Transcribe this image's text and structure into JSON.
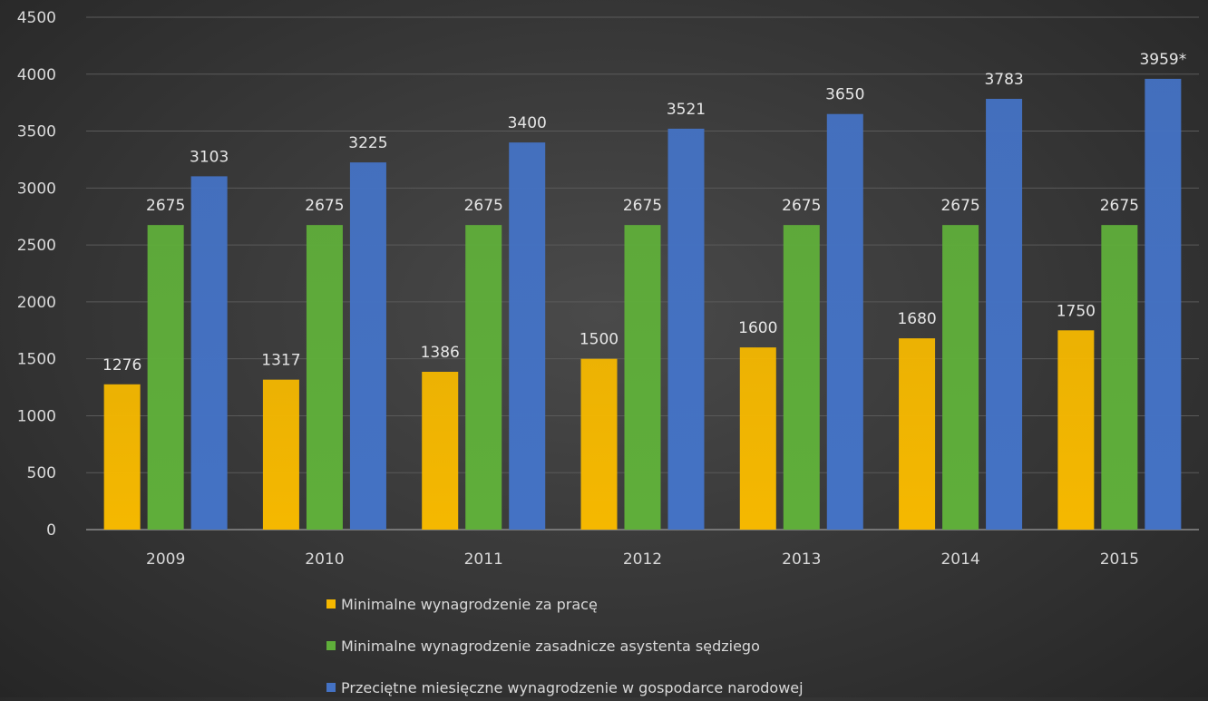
{
  "chart_data": {
    "type": "bar",
    "categories": [
      "2009",
      "2010",
      "2011",
      "2012",
      "2013",
      "2014",
      "2015"
    ],
    "series": [
      {
        "name": "Minimalne wynagrodzenie za pracę",
        "values": [
          1276,
          1317,
          1386,
          1500,
          1600,
          1680,
          1750
        ],
        "labels": [
          "1276",
          "1317",
          "1386",
          "1500",
          "1600",
          "1680",
          "1750"
        ],
        "color": "#f5b800"
      },
      {
        "name": "Minimalne wynagrodzenie zasadnicze asystenta sędziego",
        "values": [
          2675,
          2675,
          2675,
          2675,
          2675,
          2675,
          2675
        ],
        "labels": [
          "2675",
          "2675",
          "2675",
          "2675",
          "2675",
          "2675",
          "2675"
        ],
        "color": "#5fae3a"
      },
      {
        "name": "Przeciętne miesięczne wynagrodzenie w gospodarce narodowej",
        "values": [
          3103,
          3225,
          3400,
          3521,
          3650,
          3783,
          3959
        ],
        "labels": [
          "3103",
          "3225",
          "3400",
          "3521",
          "3650",
          "3783",
          "3959*"
        ],
        "color": "#4472c4"
      }
    ],
    "yticks": [
      "0",
      "500",
      "1000",
      "1500",
      "2000",
      "2500",
      "3000",
      "3500",
      "4000",
      "4500"
    ],
    "ylim": [
      0,
      4500
    ],
    "grid": true,
    "legend_position": "bottom",
    "colors": {
      "axis_text": "#d9d9d9",
      "label_text": "#e6e6e6",
      "grid": "#5a5a5a",
      "axis_line": "#8a8a8a"
    }
  }
}
